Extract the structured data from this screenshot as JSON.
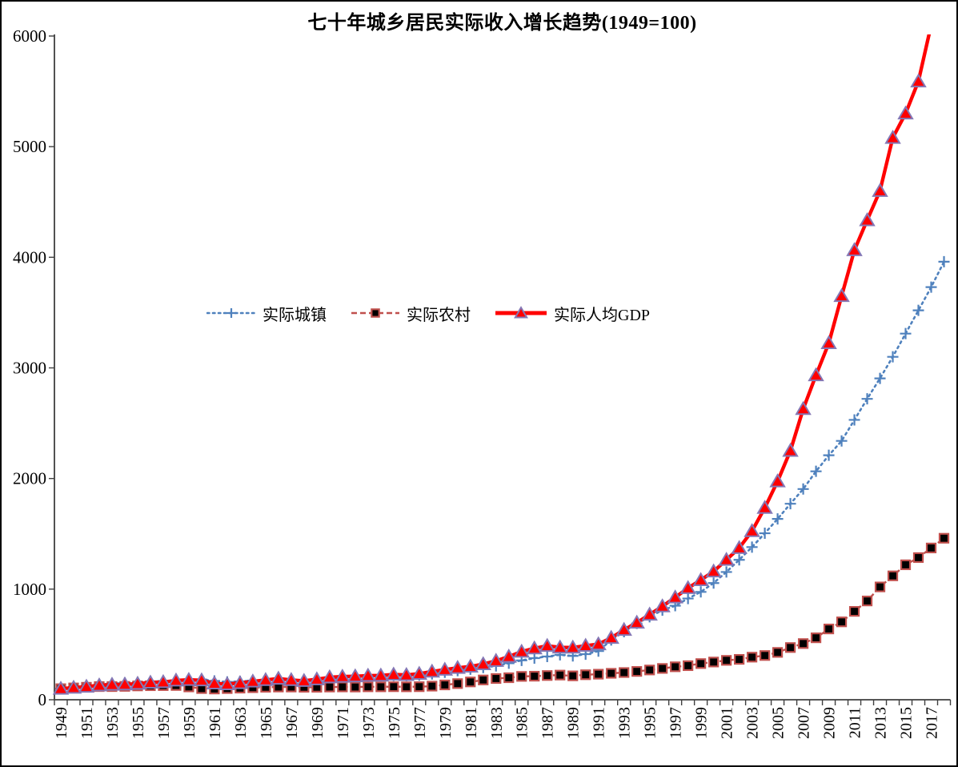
{
  "window": {
    "background": "#ffffff",
    "border_color": "#000000"
  },
  "chart_data": {
    "type": "line",
    "title": "七十年城乡居民实际收入增长趋势(1949=100)",
    "xlabel": "",
    "ylabel": "",
    "ylim": [
      0,
      6000
    ],
    "y_ticks": [
      0,
      1000,
      2000,
      3000,
      4000,
      5000,
      6000
    ],
    "x_label_step": 2,
    "grid": false,
    "legend_position": "inside-left-middle",
    "axis_color": "#3f3f3f",
    "x": [
      1949,
      1950,
      1951,
      1952,
      1953,
      1954,
      1955,
      1956,
      1957,
      1958,
      1959,
      1960,
      1961,
      1962,
      1963,
      1964,
      1965,
      1966,
      1967,
      1968,
      1969,
      1970,
      1971,
      1972,
      1973,
      1974,
      1975,
      1976,
      1977,
      1978,
      1979,
      1980,
      1981,
      1982,
      1983,
      1984,
      1985,
      1986,
      1987,
      1988,
      1989,
      1990,
      1991,
      1992,
      1993,
      1994,
      1995,
      1996,
      1997,
      1998,
      1999,
      2000,
      2001,
      2002,
      2003,
      2004,
      2005,
      2006,
      2007,
      2008,
      2009,
      2010,
      2011,
      2012,
      2013,
      2014,
      2015,
      2016,
      2017,
      2018
    ],
    "series": [
      {
        "name": "实际城镇",
        "color": "#4f81bd",
        "line_style": "dotted",
        "marker": "plus",
        "values": [
          100,
          115,
          127,
          139,
          147,
          151,
          156,
          163,
          169,
          175,
          180,
          183,
          170,
          161,
          166,
          173,
          180,
          186,
          180,
          175,
          181,
          190,
          197,
          204,
          211,
          215,
          220,
          218,
          223,
          233,
          248,
          263,
          276,
          291,
          306,
          330,
          356,
          376,
          391,
          406,
          396,
          412,
          440,
          540,
          615,
          690,
          750,
          810,
          850,
          915,
          975,
          1055,
          1155,
          1265,
          1380,
          1505,
          1635,
          1772,
          1905,
          2065,
          2210,
          2340,
          2530,
          2720,
          2905,
          3100,
          3310,
          3520,
          3730,
          3960
        ]
      },
      {
        "name": "实际农村",
        "color": "#c0504d",
        "line_style": "dashed",
        "marker": "square",
        "marker_fill": "#000000",
        "values": [
          100,
          107,
          113,
          119,
          119,
          121,
          125,
          127,
          128,
          129,
          116,
          101,
          97,
          101,
          105,
          109,
          113,
          115,
          115,
          113,
          113,
          115,
          116,
          115,
          117,
          117,
          118,
          117,
          118,
          123,
          134,
          146,
          161,
          179,
          192,
          199,
          211,
          213,
          219,
          223,
          216,
          226,
          231,
          239,
          246,
          256,
          269,
          283,
          298,
          308,
          327,
          341,
          356,
          365,
          385,
          400,
          428,
          472,
          508,
          560,
          640,
          704,
          799,
          893,
          1020,
          1120,
          1220,
          1285,
          1372,
          1460
        ]
      },
      {
        "name": "实际人均GDP",
        "color": "#ff0000",
        "line_style": "solid",
        "marker": "triangle",
        "marker_fill": "#ff0000",
        "marker_stroke": "#8477b5",
        "values": [
          100,
          109,
          118,
          130,
          136,
          139,
          145,
          155,
          160,
          174,
          180,
          176,
          148,
          141,
          151,
          165,
          179,
          191,
          179,
          171,
          185,
          203,
          209,
          212,
          218,
          219,
          228,
          224,
          235,
          255,
          272,
          288,
          300,
          322,
          352,
          390,
          435,
          465,
          487,
          473,
          472,
          488,
          502,
          560,
          632,
          697,
          770,
          845,
          925,
          1010,
          1082,
          1160,
          1265,
          1372,
          1525,
          1735,
          1975,
          2251,
          2629,
          2934,
          3224,
          3650,
          4065,
          4335,
          4600,
          5080,
          5300,
          5590,
          6100,
          6550
        ]
      }
    ]
  }
}
